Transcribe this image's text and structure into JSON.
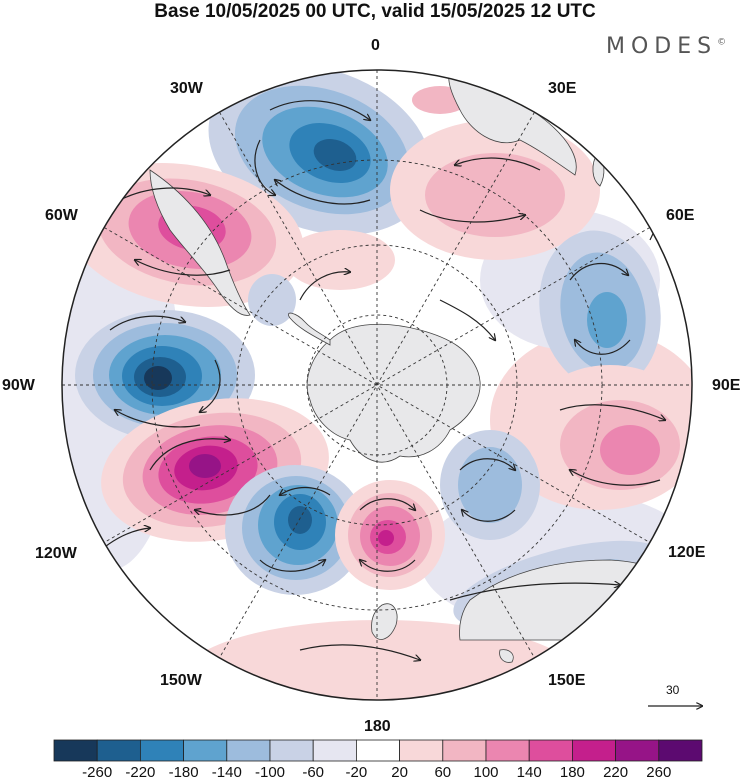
{
  "title": "Base 10/05/2025 00 UTC, valid 15/05/2025 12 UTC",
  "brand": "MODES",
  "brand_mark": "©",
  "longitude_labels": {
    "lon_0": "0",
    "lon_30e": "30E",
    "lon_60e": "60E",
    "lon_90e": "90E",
    "lon_120e": "120E",
    "lon_150e": "150E",
    "lon_180": "180",
    "lon_150w": "150W",
    "lon_120w": "120W",
    "lon_90w": "90W",
    "lon_60w": "60W",
    "lon_30w": "30W"
  },
  "reference_vector": {
    "label": "30"
  },
  "colorbar": {
    "labels": [
      "-260",
      "-220",
      "-180",
      "-140",
      "-100",
      "-60",
      "-20",
      "20",
      "60",
      "100",
      "140",
      "180",
      "220",
      "260"
    ],
    "colors": [
      "#17385a",
      "#1e5f8f",
      "#2f82b8",
      "#5fa3cf",
      "#9dbcdd",
      "#c9d2e6",
      "#e6e6f1",
      "#ffffff",
      "#f8d8d9",
      "#f2b6c3",
      "#eb86b0",
      "#de4e9d",
      "#c41f8c",
      "#961487",
      "#5c0a70"
    ]
  },
  "map": {
    "projection": "south-polar-stereographic",
    "anomalies": [
      {
        "name": "trough-atlantic",
        "value": -200
      },
      {
        "name": "ridge-southafrica",
        "value": 100
      },
      {
        "name": "ridge-south-america",
        "value": 180
      },
      {
        "name": "trough-indian-ocean",
        "value": -140
      },
      {
        "name": "trough-south-pacific-west",
        "value": -240
      },
      {
        "name": "ridge-south-pacific",
        "value": 230
      },
      {
        "name": "trough-pacific",
        "value": -200
      },
      {
        "name": "ridge-ross-sea",
        "value": 200
      },
      {
        "name": "trough-australia",
        "value": -100
      },
      {
        "name": "ridge-east-indian",
        "value": 140
      }
    ]
  }
}
